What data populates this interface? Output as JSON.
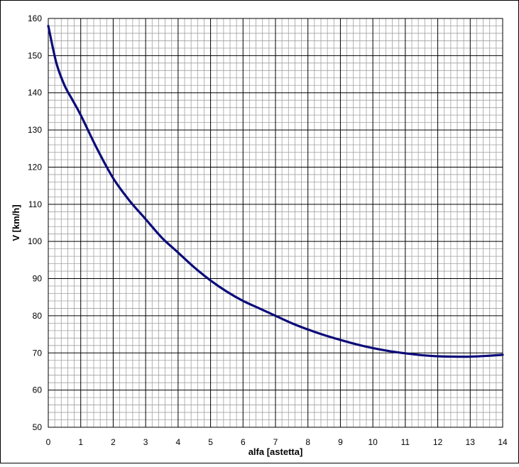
{
  "colors": {
    "line": "#0b0b7a",
    "major_grid": "#000000",
    "minor_grid": "#a0a0a0",
    "frame": "#000000",
    "background": "#ffffff"
  },
  "chart_data": {
    "type": "line",
    "title": "",
    "xlabel": "alfa [astetta]",
    "ylabel": "V [km/h]",
    "xlim": [
      0,
      14
    ],
    "ylim": [
      50,
      160
    ],
    "x_ticks": [
      "0",
      "1",
      "2",
      "3",
      "4",
      "5",
      "6",
      "7",
      "8",
      "9",
      "10",
      "11",
      "12",
      "13",
      "14"
    ],
    "y_ticks": [
      "50",
      "60",
      "70",
      "80",
      "90",
      "100",
      "110",
      "120",
      "130",
      "140",
      "150",
      "160"
    ],
    "grid": true,
    "legend": "none",
    "series": [
      {
        "x": [
          0,
          0.25,
          0.5,
          0.75,
          1,
          1.5,
          2,
          2.5,
          3,
          3.5,
          4,
          4.5,
          5,
          5.5,
          6,
          6.5,
          7,
          7.5,
          8,
          8.5,
          9,
          9.5,
          10,
          10.5,
          11,
          11.5,
          12,
          12.5,
          13,
          13.5,
          14
        ],
        "values": [
          158,
          148,
          142,
          138,
          134,
          125,
          117,
          111,
          106,
          101,
          97,
          93,
          89.5,
          86.5,
          84,
          82,
          80,
          78,
          76.3,
          74.8,
          73.5,
          72.3,
          71.3,
          70.5,
          69.9,
          69.4,
          69.1,
          69.0,
          69.0,
          69.2,
          69.5
        ]
      }
    ]
  }
}
